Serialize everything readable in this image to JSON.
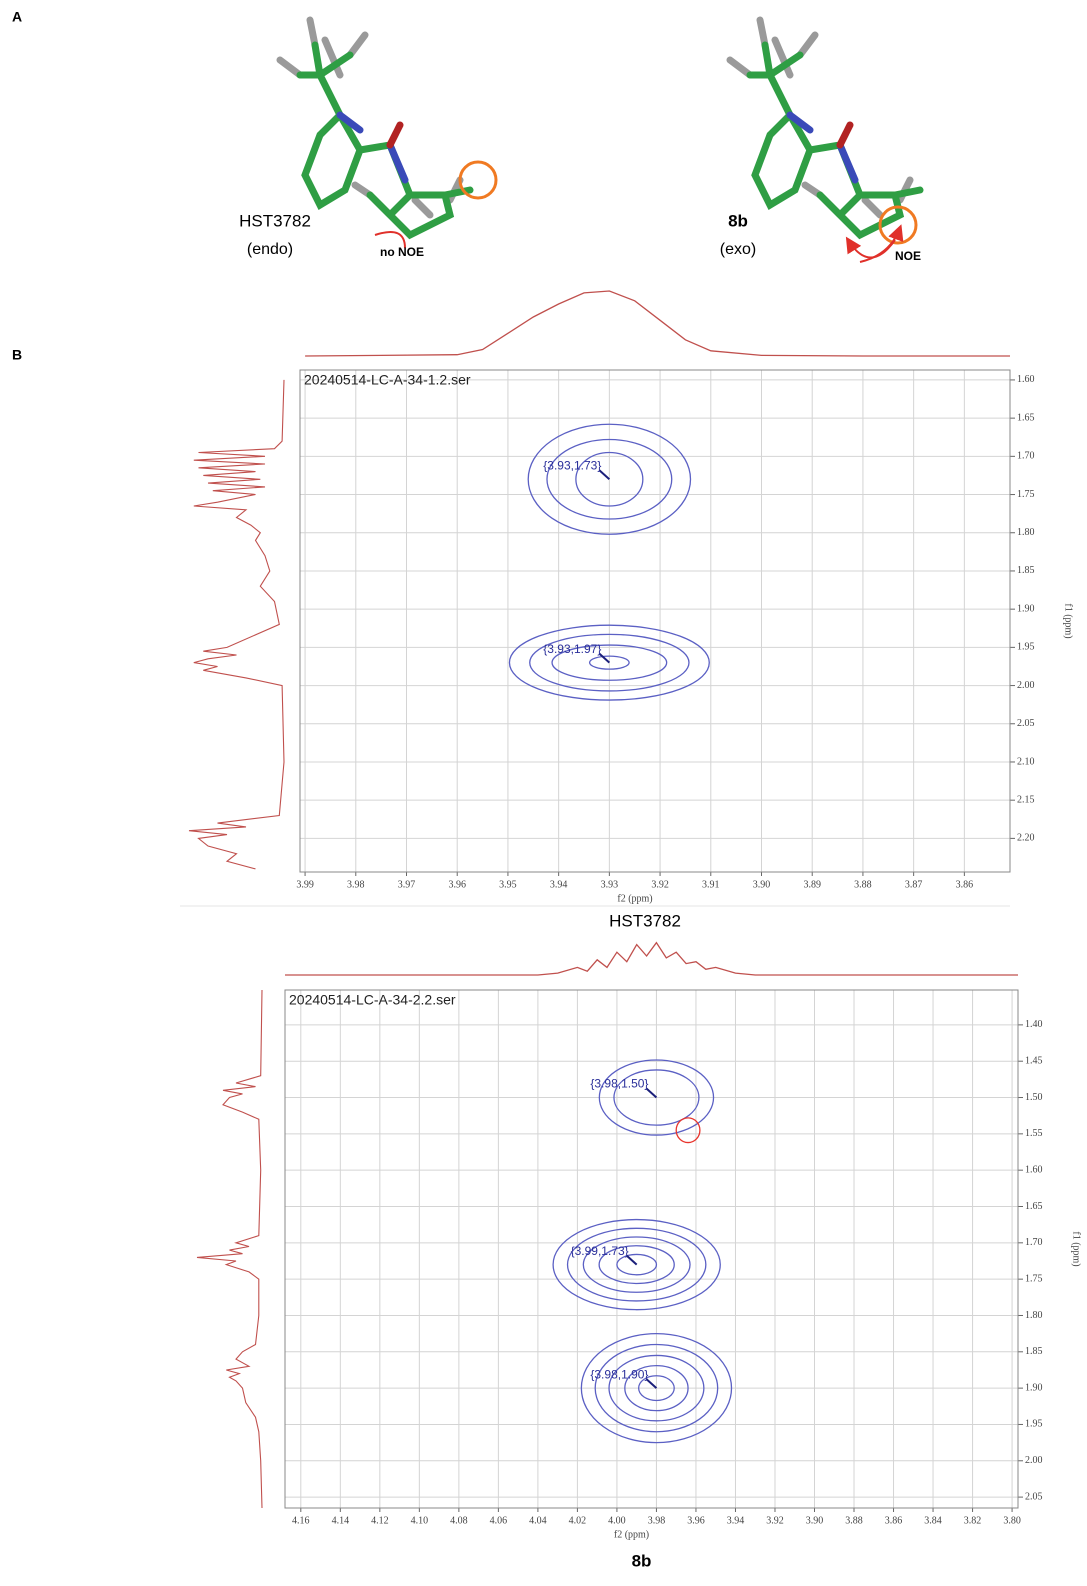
{
  "panel_labels": [
    "A",
    "B"
  ],
  "structures": [
    {
      "name": "HST3782",
      "conformation": "(endo)",
      "noe_label": "no NOE"
    },
    {
      "name": "8b",
      "conformation": "(exo)",
      "noe_label": "NOE"
    }
  ],
  "chart_data": [
    {
      "type": "contour",
      "title": "20240514-LC-A-34-1.2.ser",
      "caption": "HST3782",
      "x_label": "f2 (ppm)",
      "y_label": "f1 (ppm)",
      "xlim": [
        3.991,
        3.851
      ],
      "ylim": [
        1.587,
        2.244
      ],
      "xticks": [
        3.99,
        3.98,
        3.97,
        3.96,
        3.95,
        3.94,
        3.93,
        3.92,
        3.91,
        {
          "value": 3.9,
          "label": "3.90"
        },
        3.89,
        3.88,
        3.87,
        3.86
      ],
      "yticks": [
        {
          "value": 1.6,
          "label": "1.60"
        },
        1.65,
        {
          "value": 1.7,
          "label": "1.70"
        },
        1.75,
        {
          "value": 1.8,
          "label": "1.80"
        },
        1.85,
        {
          "value": 1.9,
          "label": "1.90"
        },
        1.95,
        {
          "value": 2,
          "label": "2.00"
        },
        2.05,
        {
          "value": 2.1,
          "label": "2.10"
        },
        2.15,
        {
          "value": 2.2,
          "label": "2.20"
        }
      ],
      "grid": true,
      "contour_color": "#5b60c4",
      "projection_color": "#c0504d",
      "peaks": [
        {
          "x": 3.93,
          "y": 1.73,
          "label": "{3.93,1.73}",
          "contours": [
            [
              0.016,
              0.072
            ],
            [
              0.0123,
              0.052
            ],
            [
              0.0066,
              0.035
            ]
          ]
        },
        {
          "x": 3.93,
          "y": 1.97,
          "label": "{3.93,1.97}",
          "contours": [
            [
              0.0197,
              0.049
            ],
            [
              0.0157,
              0.037
            ],
            [
              0.0113,
              0.023
            ],
            [
              0.0039,
              0.0085
            ]
          ]
        }
      ],
      "x_projection": {
        "ppm": [
          3.99,
          3.96,
          3.955,
          3.95,
          3.945,
          3.94,
          3.935,
          3.93,
          3.925,
          3.92,
          3.915,
          3.91,
          3.9,
          3.88,
          3.851
        ],
        "values": [
          0,
          0.02,
          0.1,
          0.35,
          0.6,
          0.8,
          0.97,
          1.0,
          0.85,
          0.55,
          0.25,
          0.08,
          0.01,
          0,
          0
        ]
      },
      "y_projection": {
        "ppm": [
          1.6,
          1.68,
          1.69,
          1.695,
          1.7,
          1.705,
          1.71,
          1.715,
          1.72,
          1.725,
          1.73,
          1.735,
          1.74,
          1.745,
          1.75,
          1.76,
          1.765,
          1.77,
          1.78,
          1.79,
          1.8,
          1.81,
          1.83,
          1.85,
          1.87,
          1.89,
          1.92,
          1.95,
          1.955,
          1.96,
          1.965,
          1.97,
          1.975,
          1.98,
          1.99,
          2.0,
          2.1,
          2.17,
          2.18,
          2.185,
          2.19,
          2.195,
          2.2,
          2.21,
          2.22,
          2.23,
          2.24
        ],
        "values": [
          0,
          0.02,
          0.1,
          0.9,
          0.2,
          0.95,
          0.2,
          0.9,
          0.3,
          0.85,
          0.25,
          0.8,
          0.2,
          0.75,
          0.3,
          0.7,
          0.95,
          0.4,
          0.5,
          0.35,
          0.25,
          0.3,
          0.2,
          0.15,
          0.25,
          0.1,
          0.05,
          0.6,
          0.85,
          0.5,
          0.8,
          0.95,
          0.7,
          0.85,
          0.4,
          0.02,
          0,
          0.05,
          0.7,
          0.4,
          1.0,
          0.6,
          0.9,
          0.8,
          0.5,
          0.6,
          0.3
        ]
      }
    },
    {
      "type": "contour",
      "title": "20240514-LC-A-34-2.2.ser",
      "caption": "8b",
      "x_label": "f2 (ppm)",
      "y_label": "f1 (ppm)",
      "xlim": [
        4.168,
        3.797
      ],
      "ylim": [
        1.352,
        2.065
      ],
      "xticks": [
        4.16,
        4.14,
        4.12,
        {
          "value": 4.1,
          "label": "4.10"
        },
        4.08,
        4.06,
        4.04,
        4.02,
        {
          "value": 4,
          "label": "4.00"
        },
        3.98,
        3.96,
        3.94,
        3.92,
        {
          "value": 3.9,
          "label": "3.90"
        },
        3.88,
        3.86,
        3.84,
        3.82,
        {
          "value": 3.8,
          "label": "3.80"
        }
      ],
      "yticks": [
        {
          "value": 1.4,
          "label": "1.40"
        },
        1.45,
        {
          "value": 1.5,
          "label": "1.50"
        },
        1.55,
        {
          "value": 1.6,
          "label": "1.60"
        },
        1.65,
        {
          "value": 1.7,
          "label": "1.70"
        },
        1.75,
        {
          "value": 1.8,
          "label": "1.80"
        },
        1.85,
        {
          "value": 1.9,
          "label": "1.90"
        },
        1.95,
        {
          "value": 2,
          "label": "2.00"
        },
        2.05
      ],
      "grid": true,
      "contour_color": "#5b60c4",
      "projection_color": "#c0504d",
      "negative_color": "#e8342c",
      "peaks": [
        {
          "x": 3.98,
          "y": 1.5,
          "label": "{3.98,1.50}",
          "contours": [
            [
              0.0289,
              0.0517
            ],
            [
              0.0215,
              0.038
            ]
          ]
        },
        {
          "x": 3.99,
          "y": 1.73,
          "label": "{3.99,1.73}",
          "contours": [
            [
              0.0423,
              0.062
            ],
            [
              0.035,
              0.05
            ],
            [
              0.027,
              0.038
            ],
            [
              0.019,
              0.026
            ],
            [
              0.01,
              0.014
            ]
          ]
        },
        {
          "x": 3.98,
          "y": 1.9,
          "label": "{3.98,1.90}",
          "contours": [
            [
              0.038,
              0.075
            ],
            [
              0.031,
              0.06
            ],
            [
              0.024,
              0.045
            ],
            [
              0.016,
              0.031
            ],
            [
              0.009,
              0.017
            ]
          ]
        }
      ],
      "negative_peaks": [
        {
          "x": 3.964,
          "y": 1.545,
          "contours": [
            [
              0.006,
              0.017
            ]
          ]
        }
      ],
      "x_projection": {
        "ppm": [
          4.168,
          4.04,
          4.03,
          4.02,
          4.015,
          4.01,
          4.005,
          4.0,
          3.995,
          3.99,
          3.985,
          3.98,
          3.975,
          3.97,
          3.965,
          3.96,
          3.955,
          3.95,
          3.94,
          3.93,
          3.797
        ],
        "values": [
          0,
          0,
          0.05,
          0.2,
          0.1,
          0.4,
          0.2,
          0.6,
          0.35,
          0.8,
          0.5,
          0.85,
          0.45,
          0.6,
          0.3,
          0.35,
          0.15,
          0.2,
          0.05,
          0,
          0
        ]
      },
      "y_projection": {
        "ppm": [
          1.352,
          1.47,
          1.48,
          1.485,
          1.49,
          1.495,
          1.5,
          1.51,
          1.52,
          1.53,
          1.6,
          1.69,
          1.7,
          1.705,
          1.71,
          1.715,
          1.72,
          1.725,
          1.73,
          1.74,
          1.75,
          1.8,
          1.84,
          1.85,
          1.86,
          1.87,
          1.875,
          1.88,
          1.885,
          1.89,
          1.9,
          1.92,
          1.94,
          1.96,
          2.0,
          2.065
        ],
        "values": [
          0,
          0.02,
          0.4,
          0.1,
          0.6,
          0.3,
          0.5,
          0.6,
          0.3,
          0.05,
          0.02,
          0.05,
          0.4,
          0.2,
          0.5,
          0.3,
          1.0,
          0.4,
          0.55,
          0.2,
          0.05,
          0.05,
          0.1,
          0.3,
          0.4,
          0.2,
          0.55,
          0.35,
          0.5,
          0.4,
          0.3,
          0.25,
          0.1,
          0.05,
          0.02,
          0
        ]
      }
    }
  ]
}
